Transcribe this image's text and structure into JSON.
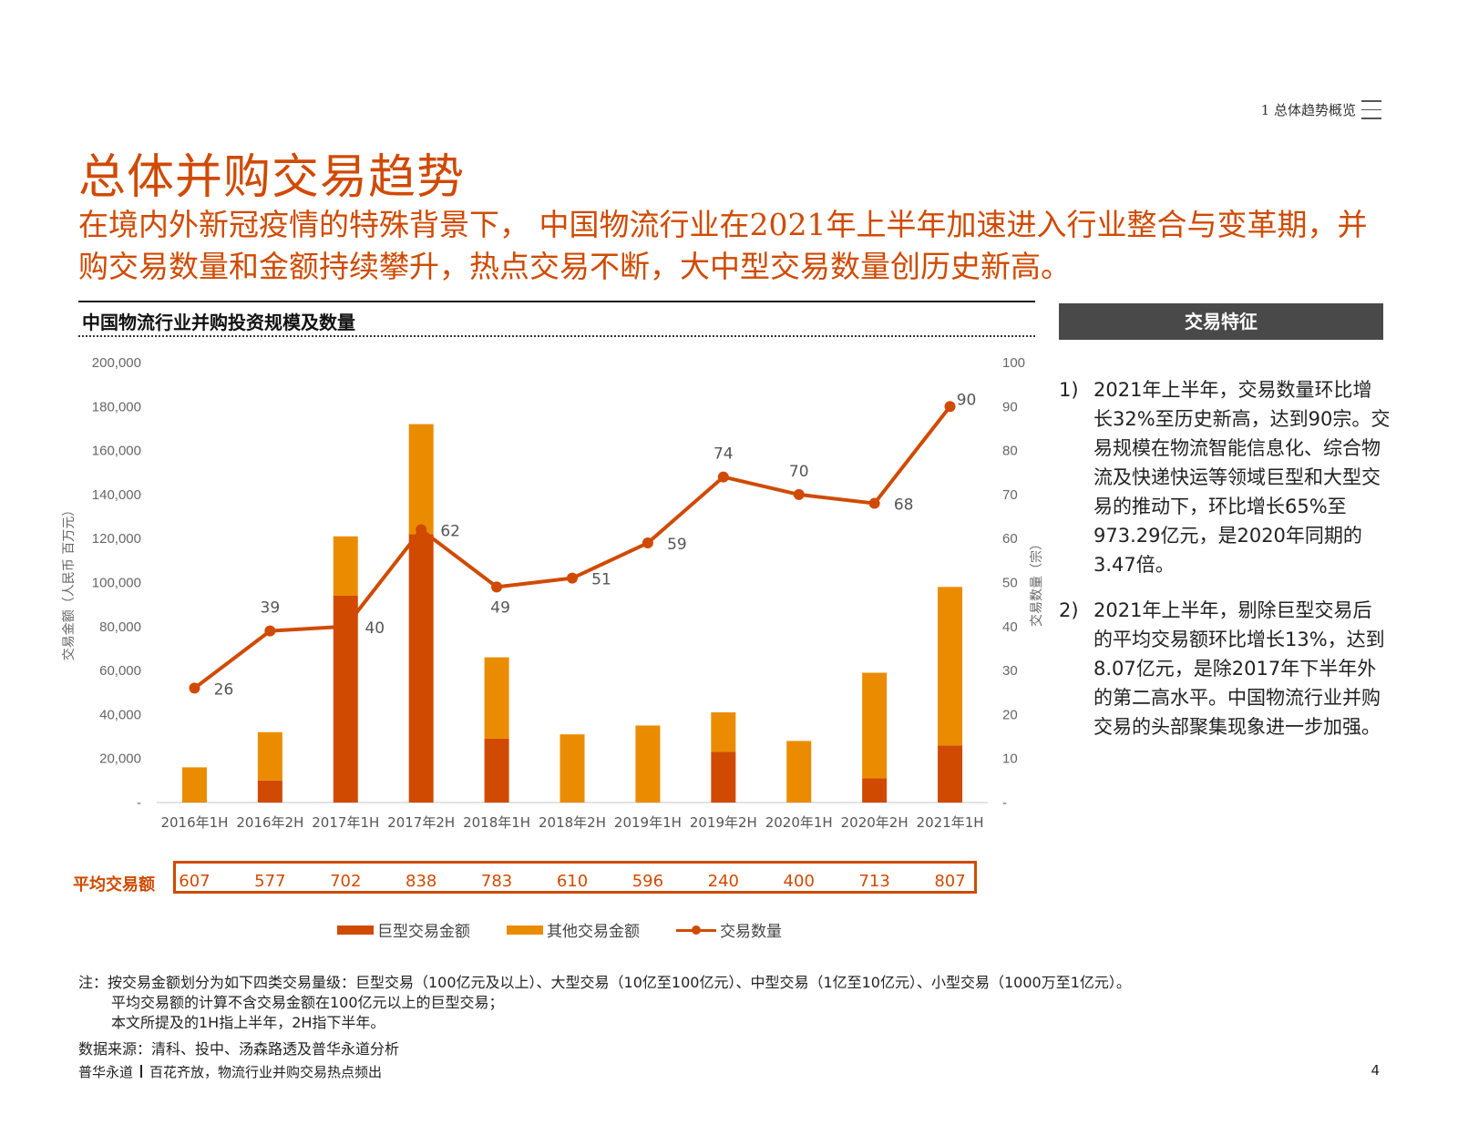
{
  "header": {
    "section_tag": "1 总体趋势概览"
  },
  "page_title": "总体并购交易趋势",
  "subtitle": "在境内外新冠疫情的特殊背景下， 中国物流行业在2021年上半年加速进入行业整合与变革期，并购交易数量和金额持续攀升，热点交易不断，大中型交易数量创历史新高。",
  "chart_title": "中国物流行业并购投资规模及数量",
  "chart_data": {
    "type": "bar",
    "stacked": true,
    "categories": [
      "2016年1H",
      "2016年2H",
      "2017年1H",
      "2017年2H",
      "2018年1H",
      "2018年2H",
      "2019年1H",
      "2019年2H",
      "2020年1H",
      "2020年2H",
      "2021年1H"
    ],
    "series": [
      {
        "name": "巨型交易金额",
        "type": "bar",
        "axis": "left",
        "color": "#d04a02",
        "values": [
          0,
          10000,
          94000,
          122000,
          29000,
          0,
          0,
          23000,
          0,
          11000,
          26000
        ]
      },
      {
        "name": "其他交易金额",
        "type": "bar",
        "axis": "left",
        "color": "#eb8c00",
        "values": [
          16000,
          22000,
          27000,
          50000,
          37000,
          31000,
          35000,
          18000,
          28000,
          48000,
          72000
        ]
      },
      {
        "name": "交易数量",
        "type": "line",
        "axis": "right",
        "color": "#d04a02",
        "values": [
          26,
          39,
          40,
          62,
          49,
          51,
          59,
          74,
          70,
          68,
          90
        ]
      }
    ],
    "left_axis": {
      "label": "交易金额（人民币 百万元）",
      "min": 0,
      "max": 200000,
      "ticks": [
        "-",
        "20,000",
        "40,000",
        "60,000",
        "80,000",
        "100,000",
        "120,000",
        "140,000",
        "160,000",
        "180,000",
        "200,000"
      ]
    },
    "right_axis": {
      "label": "交易数量（宗）",
      "min": 0,
      "max": 100,
      "ticks": [
        "-",
        "10",
        "20",
        "30",
        "40",
        "50",
        "60",
        "70",
        "80",
        "90",
        "100"
      ]
    },
    "grid": false,
    "legend_position": "bottom"
  },
  "avg_deal": {
    "label": "平均交易额",
    "values": [
      "607",
      "577",
      "702",
      "838",
      "783",
      "610",
      "596",
      "240",
      "400",
      "713",
      "807"
    ]
  },
  "features": {
    "title": "交易特征",
    "items": [
      {
        "num": "1)",
        "text": "2021年上半年，交易数量环比增长32%至历史新高，达到90宗。交易规模在物流智能信息化、综合物流及快递快运等领域巨型和大型交易的推动下，环比增长65%至973.29亿元，是2020年同期的3.47倍。"
      },
      {
        "num": "2)",
        "text": "2021年上半年，剔除巨型交易后的平均交易额环比增长13%，达到8.07亿元，是除2017年下半年外的第二高水平。中国物流行业并购交易的头部聚集现象进一步加强。"
      }
    ]
  },
  "notes": {
    "line1": "注：按交易金额划分为如下四类交易量级：巨型交易（100亿元及以上）、大型交易（10亿至100亿元）、中型交易（1亿至10亿元）、小型交易（1000万至1亿元）。",
    "line2": "平均交易额的计算不含交易金额在100亿元以上的巨型交易；",
    "line3": "本文所提及的1H指上半年，2H指下半年。"
  },
  "source": "数据来源：清科、投中、汤森路透及普华永道分析",
  "footer": {
    "brand": "普华永道",
    "title": "百花齐放，物流行业并购交易热点频出",
    "page": "4"
  }
}
